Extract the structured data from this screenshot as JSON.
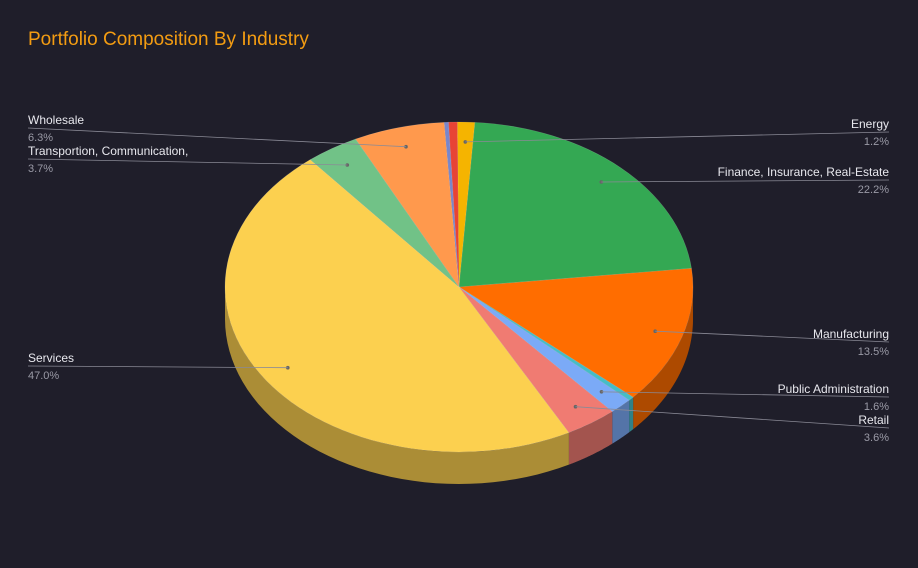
{
  "chart_data": {
    "type": "pie",
    "title": "Portfolio Composition By Industry",
    "style": "3d",
    "slices": [
      {
        "label": "Energy",
        "value": 1.2,
        "pct_text": "1.2%",
        "color": "#f5b400"
      },
      {
        "label": "Finance, Insurance, Real-Estate",
        "value": 22.2,
        "pct_text": "22.2%",
        "color": "#34a853"
      },
      {
        "label": "Manufacturing",
        "value": 13.5,
        "pct_text": "13.5%",
        "color": "#ff6d00"
      },
      {
        "label": "",
        "value": 0.4,
        "pct_text": "",
        "color": "#46bdc6"
      },
      {
        "label": "Public Administration",
        "value": 1.6,
        "pct_text": "1.6%",
        "color": "#7baaf7"
      },
      {
        "label": "Retail",
        "value": 3.6,
        "pct_text": "3.6%",
        "color": "#f07b72"
      },
      {
        "label": "Services",
        "value": 47.0,
        "pct_text": "47.0%",
        "color": "#fcd04f"
      },
      {
        "label": "Transportion, Communication,",
        "value": 3.7,
        "pct_text": "3.7%",
        "color": "#71c287"
      },
      {
        "label": "Wholesale",
        "value": 6.3,
        "pct_text": "6.3%",
        "color": "#ff994d"
      },
      {
        "label": "",
        "value": 0.3,
        "pct_text": "",
        "color": "#7986cb"
      },
      {
        "label": "",
        "value": 0.6,
        "pct_text": "",
        "color": "#e84335"
      }
    ],
    "legend": "none",
    "title_color": "#f39c12",
    "background": "#1f1e2a"
  }
}
